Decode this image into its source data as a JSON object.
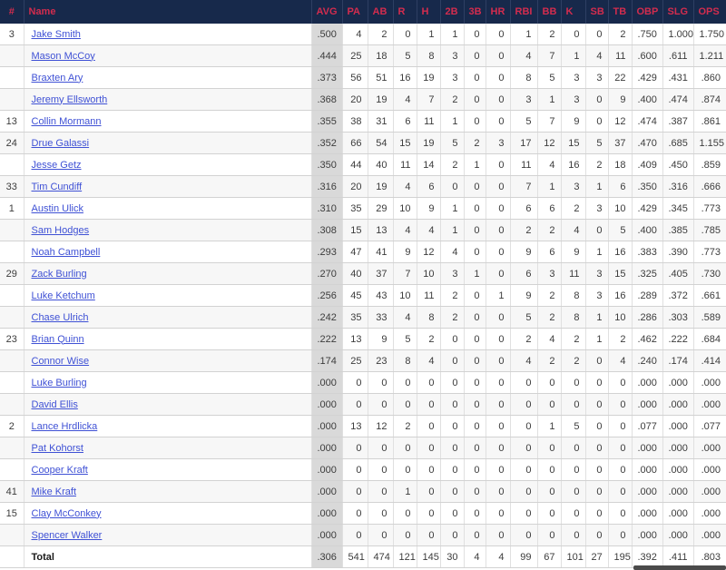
{
  "colors": {
    "header_bg": "#17294b",
    "header_text": "#d22c4e",
    "link": "#3f51d5",
    "avg_column_bg": "#d9d9d9",
    "row_stripe": "#f7f7f7"
  },
  "table": {
    "columns": [
      "#",
      "Name",
      "AVG",
      "PA",
      "AB",
      "R",
      "H",
      "2B",
      "3B",
      "HR",
      "RBI",
      "BB",
      "K",
      "SB",
      "TB",
      "OBP",
      "SLG",
      "OPS"
    ],
    "rows": [
      {
        "num": "3",
        "name": "Jake Smith",
        "stats": [
          ".500",
          "4",
          "2",
          "0",
          "1",
          "1",
          "0",
          "0",
          "1",
          "2",
          "0",
          "0",
          "2",
          ".750",
          "1.000",
          "1.750"
        ]
      },
      {
        "num": "",
        "name": "Mason McCoy",
        "stats": [
          ".444",
          "25",
          "18",
          "5",
          "8",
          "3",
          "0",
          "0",
          "4",
          "7",
          "1",
          "4",
          "11",
          ".600",
          ".611",
          "1.211"
        ]
      },
      {
        "num": "",
        "name": "Braxten Ary",
        "stats": [
          ".373",
          "56",
          "51",
          "16",
          "19",
          "3",
          "0",
          "0",
          "8",
          "5",
          "3",
          "3",
          "22",
          ".429",
          ".431",
          ".860"
        ]
      },
      {
        "num": "",
        "name": "Jeremy Ellsworth",
        "stats": [
          ".368",
          "20",
          "19",
          "4",
          "7",
          "2",
          "0",
          "0",
          "3",
          "1",
          "3",
          "0",
          "9",
          ".400",
          ".474",
          ".874"
        ]
      },
      {
        "num": "13",
        "name": "Collin Mormann",
        "stats": [
          ".355",
          "38",
          "31",
          "6",
          "11",
          "1",
          "0",
          "0",
          "5",
          "7",
          "9",
          "0",
          "12",
          ".474",
          ".387",
          ".861"
        ]
      },
      {
        "num": "24",
        "name": "Drue Galassi",
        "stats": [
          ".352",
          "66",
          "54",
          "15",
          "19",
          "5",
          "2",
          "3",
          "17",
          "12",
          "15",
          "5",
          "37",
          ".470",
          ".685",
          "1.155"
        ]
      },
      {
        "num": "",
        "name": "Jesse Getz",
        "stats": [
          ".350",
          "44",
          "40",
          "11",
          "14",
          "2",
          "1",
          "0",
          "11",
          "4",
          "16",
          "2",
          "18",
          ".409",
          ".450",
          ".859"
        ]
      },
      {
        "num": "33",
        "name": "Tim Cundiff",
        "stats": [
          ".316",
          "20",
          "19",
          "4",
          "6",
          "0",
          "0",
          "0",
          "7",
          "1",
          "3",
          "1",
          "6",
          ".350",
          ".316",
          ".666"
        ]
      },
      {
        "num": "1",
        "name": "Austin Ulick",
        "stats": [
          ".310",
          "35",
          "29",
          "10",
          "9",
          "1",
          "0",
          "0",
          "6",
          "6",
          "2",
          "3",
          "10",
          ".429",
          ".345",
          ".773"
        ]
      },
      {
        "num": "",
        "name": "Sam Hodges",
        "stats": [
          ".308",
          "15",
          "13",
          "4",
          "4",
          "1",
          "0",
          "0",
          "2",
          "2",
          "4",
          "0",
          "5",
          ".400",
          ".385",
          ".785"
        ]
      },
      {
        "num": "",
        "name": "Noah Campbell",
        "stats": [
          ".293",
          "47",
          "41",
          "9",
          "12",
          "4",
          "0",
          "0",
          "9",
          "6",
          "9",
          "1",
          "16",
          ".383",
          ".390",
          ".773"
        ]
      },
      {
        "num": "29",
        "name": "Zack Burling",
        "stats": [
          ".270",
          "40",
          "37",
          "7",
          "10",
          "3",
          "1",
          "0",
          "6",
          "3",
          "11",
          "3",
          "15",
          ".325",
          ".405",
          ".730"
        ]
      },
      {
        "num": "",
        "name": "Luke Ketchum",
        "stats": [
          ".256",
          "45",
          "43",
          "10",
          "11",
          "2",
          "0",
          "1",
          "9",
          "2",
          "8",
          "3",
          "16",
          ".289",
          ".372",
          ".661"
        ]
      },
      {
        "num": "",
        "name": "Chase Ulrich",
        "stats": [
          ".242",
          "35",
          "33",
          "4",
          "8",
          "2",
          "0",
          "0",
          "5",
          "2",
          "8",
          "1",
          "10",
          ".286",
          ".303",
          ".589"
        ]
      },
      {
        "num": "23",
        "name": "Brian Quinn",
        "stats": [
          ".222",
          "13",
          "9",
          "5",
          "2",
          "0",
          "0",
          "0",
          "2",
          "4",
          "2",
          "1",
          "2",
          ".462",
          ".222",
          ".684"
        ]
      },
      {
        "num": "",
        "name": "Connor Wise",
        "stats": [
          ".174",
          "25",
          "23",
          "8",
          "4",
          "0",
          "0",
          "0",
          "4",
          "2",
          "2",
          "0",
          "4",
          ".240",
          ".174",
          ".414"
        ]
      },
      {
        "num": "",
        "name": "Luke Burling",
        "stats": [
          ".000",
          "0",
          "0",
          "0",
          "0",
          "0",
          "0",
          "0",
          "0",
          "0",
          "0",
          "0",
          "0",
          ".000",
          ".000",
          ".000"
        ]
      },
      {
        "num": "",
        "name": "David Ellis",
        "stats": [
          ".000",
          "0",
          "0",
          "0",
          "0",
          "0",
          "0",
          "0",
          "0",
          "0",
          "0",
          "0",
          "0",
          ".000",
          ".000",
          ".000"
        ]
      },
      {
        "num": "2",
        "name": "Lance Hrdlicka",
        "stats": [
          ".000",
          "13",
          "12",
          "2",
          "0",
          "0",
          "0",
          "0",
          "0",
          "1",
          "5",
          "0",
          "0",
          ".077",
          ".000",
          ".077"
        ]
      },
      {
        "num": "",
        "name": "Pat Kohorst",
        "stats": [
          ".000",
          "0",
          "0",
          "0",
          "0",
          "0",
          "0",
          "0",
          "0",
          "0",
          "0",
          "0",
          "0",
          ".000",
          ".000",
          ".000"
        ]
      },
      {
        "num": "",
        "name": "Cooper Kraft",
        "stats": [
          ".000",
          "0",
          "0",
          "0",
          "0",
          "0",
          "0",
          "0",
          "0",
          "0",
          "0",
          "0",
          "0",
          ".000",
          ".000",
          ".000"
        ]
      },
      {
        "num": "41",
        "name": "Mike Kraft",
        "stats": [
          ".000",
          "0",
          "0",
          "1",
          "0",
          "0",
          "0",
          "0",
          "0",
          "0",
          "0",
          "0",
          "0",
          ".000",
          ".000",
          ".000"
        ]
      },
      {
        "num": "15",
        "name": "Clay McConkey",
        "stats": [
          ".000",
          "0",
          "0",
          "0",
          "0",
          "0",
          "0",
          "0",
          "0",
          "0",
          "0",
          "0",
          "0",
          ".000",
          ".000",
          ".000"
        ]
      },
      {
        "num": "",
        "name": "Spencer Walker",
        "stats": [
          ".000",
          "0",
          "0",
          "0",
          "0",
          "0",
          "0",
          "0",
          "0",
          "0",
          "0",
          "0",
          "0",
          ".000",
          ".000",
          ".000"
        ]
      }
    ],
    "total_row": {
      "num": "",
      "label": "Total",
      "stats": [
        ".306",
        "541",
        "474",
        "121",
        "145",
        "30",
        "4",
        "4",
        "99",
        "67",
        "101",
        "27",
        "195",
        ".392",
        ".411",
        ".803"
      ]
    }
  }
}
